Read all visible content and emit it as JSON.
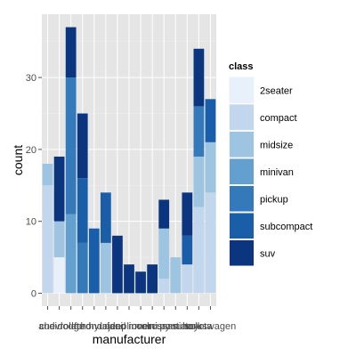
{
  "chart_data": {
    "type": "bar",
    "stacked": true,
    "xlabel": "manufacturer",
    "ylabel": "count",
    "legend_title": "class",
    "legend_position": "right",
    "ylim": [
      0,
      37
    ],
    "yticks": [
      0,
      10,
      20,
      30
    ],
    "grid": true,
    "categories": [
      "audi",
      "chevrolet",
      "dodge",
      "ford",
      "honda",
      "hyundai",
      "jeep",
      "land rover",
      "lincoln",
      "mercury",
      "nissan",
      "pontiac",
      "subaru",
      "toyota",
      "volkswagen"
    ],
    "series": [
      {
        "name": "2seater",
        "color": "#e8f0fc",
        "values": [
          0,
          5,
          0,
          0,
          0,
          0,
          0,
          0,
          0,
          0,
          0,
          0,
          0,
          0,
          0
        ]
      },
      {
        "name": "compact",
        "color": "#c2d6ee",
        "values": [
          15,
          0,
          0,
          0,
          0,
          0,
          0,
          0,
          0,
          0,
          2,
          0,
          4,
          12,
          14
        ]
      },
      {
        "name": "midsize",
        "color": "#9dc4e0",
        "values": [
          3,
          5,
          0,
          0,
          0,
          7,
          0,
          0,
          0,
          0,
          7,
          5,
          0,
          7,
          7
        ]
      },
      {
        "name": "minivan",
        "color": "#63a0d0",
        "values": [
          0,
          0,
          11,
          0,
          0,
          0,
          0,
          0,
          0,
          0,
          0,
          0,
          0,
          0,
          0
        ]
      },
      {
        "name": "pickup",
        "color": "#3479ba",
        "values": [
          0,
          0,
          19,
          7,
          0,
          0,
          0,
          0,
          0,
          0,
          0,
          0,
          0,
          7,
          0
        ]
      },
      {
        "name": "subcompact",
        "color": "#1a5ea9",
        "values": [
          0,
          0,
          0,
          9,
          9,
          7,
          0,
          0,
          0,
          0,
          0,
          0,
          4,
          0,
          6
        ]
      },
      {
        "name": "suv",
        "color": "#0c3580",
        "values": [
          0,
          9,
          7,
          9,
          0,
          0,
          8,
          4,
          3,
          4,
          4,
          0,
          6,
          8,
          0
        ]
      }
    ],
    "tick_labels_display": [
      "audi",
      "chevrolet",
      "dodge",
      "ford",
      "honda",
      "hyundai",
      "jeep",
      "land rover",
      "lincoln",
      "mercury",
      "nissan",
      "pontiac",
      "subaru",
      "toyota",
      "volkswagen"
    ],
    "colors": {
      "panel_background": "#e5e5e5",
      "grid_major": "#ffffff",
      "grid_minor": "#f0f0f0",
      "legend_key_background": "#f2f2f2"
    }
  }
}
